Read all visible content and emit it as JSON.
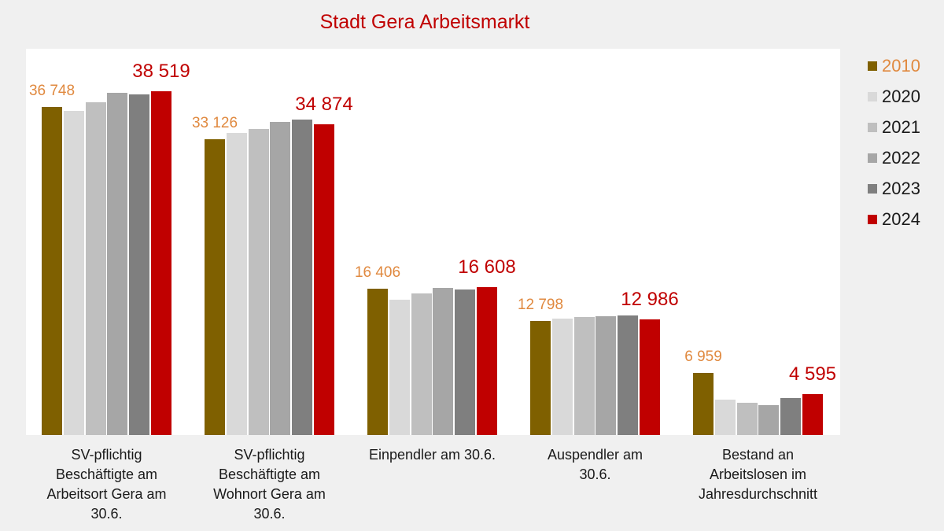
{
  "title": "Stadt Gera Arbeitsmarkt",
  "colors": {
    "page_background": "#F0F0F0",
    "plot_background": "#FFFFFF",
    "title_text": "#C00000",
    "category_text": "#1A1A1A",
    "legend_text": "#1A1A1A",
    "label_2010_text": "#E0893F",
    "label_2024_text": "#C00000"
  },
  "chart_data": {
    "type": "bar",
    "title": "Stadt Gera Arbeitsmarkt",
    "categories": [
      "SV-pflichtig Beschäftigte am Arbeitsort Gera am 30.6.",
      "SV-pflichtig Beschäftigte am Wohnort Gera am 30.6.",
      "Einpendler am 30.6.",
      "Auspendler am 30.6.",
      "Bestand an Arbeitslosen im Jahresdurchschnitt"
    ],
    "category_lines": [
      [
        "SV-pflichtig",
        "Beschäftigte am",
        "Arbeitsort Gera am",
        "30.6."
      ],
      [
        "SV-pflichtig",
        "Beschäftigte am",
        "Wohnort Gera am",
        "30.6."
      ],
      [
        "Einpendler am 30.6."
      ],
      [
        "Auspendler am",
        "30.6."
      ],
      [
        "Bestand an",
        "Arbeitslosen im",
        "Jahresdurchschnitt"
      ]
    ],
    "series": [
      {
        "name": "2010",
        "color": "#7F6000",
        "values": [
          36748,
          33126,
          16406,
          12798,
          6959
        ],
        "data_labels": [
          "36 748",
          "33 126",
          "16 406",
          "12 798",
          "6 959"
        ],
        "label_color": "#E0893F",
        "labels_shown": true
      },
      {
        "name": "2020",
        "color": "#D9D9D9",
        "values": [
          36300,
          33900,
          15200,
          13100,
          4000
        ],
        "labels_shown": false,
        "values_estimated": true
      },
      {
        "name": "2021",
        "color": "#BFBFBF",
        "values": [
          37300,
          34300,
          15900,
          13250,
          3650
        ],
        "labels_shown": false,
        "values_estimated": true
      },
      {
        "name": "2022",
        "color": "#A6A6A6",
        "values": [
          38400,
          35100,
          16500,
          13350,
          3350
        ],
        "labels_shown": false,
        "values_estimated": true
      },
      {
        "name": "2023",
        "color": "#7F7F7F",
        "values": [
          38200,
          35400,
          16300,
          13400,
          4180
        ],
        "labels_shown": false,
        "values_estimated": true
      },
      {
        "name": "2024",
        "color": "#C00000",
        "values": [
          38519,
          34874,
          16608,
          12986,
          4595
        ],
        "data_labels": [
          "38 519",
          "34 874",
          "16 608",
          "12 986",
          "4 595"
        ],
        "label_color": "#C00000",
        "labels_shown": true
      }
    ],
    "value_axis": {
      "min": 0,
      "max": 43300,
      "visible": false,
      "gridlines": false
    },
    "legend_position": "right",
    "legend": {
      "items": [
        {
          "label": "2010",
          "swatch_color": "#7F6000",
          "text_color": "#E0893F"
        },
        {
          "label": "2020",
          "swatch_color": "#D9D9D9",
          "text_color": "#1A1A1A"
        },
        {
          "label": "2021",
          "swatch_color": "#BFBFBF",
          "text_color": "#1A1A1A"
        },
        {
          "label": "2022",
          "swatch_color": "#A6A6A6",
          "text_color": "#1A1A1A"
        },
        {
          "label": "2023",
          "swatch_color": "#7F7F7F",
          "text_color": "#1A1A1A"
        },
        {
          "label": "2024",
          "swatch_color": "#C00000",
          "text_color": "#1A1A1A"
        }
      ]
    }
  }
}
